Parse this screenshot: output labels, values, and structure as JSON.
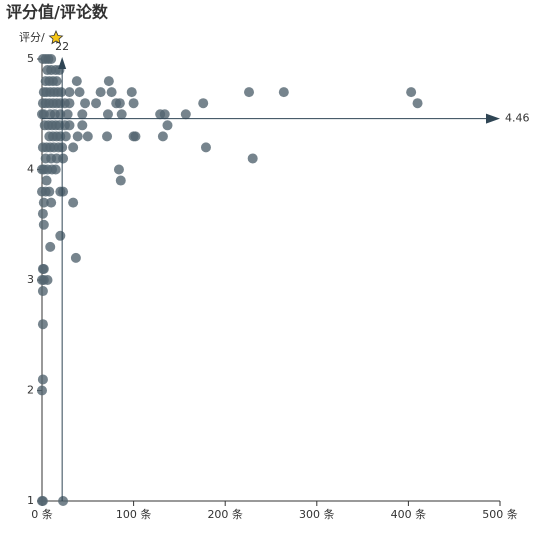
{
  "chart_data": {
    "type": "scatter",
    "title": "评分值/评论数",
    "y_axis_label": "评分/",
    "x": [
      0,
      1,
      23,
      0,
      1,
      1,
      1,
      0,
      2,
      6,
      1,
      2,
      9,
      2,
      1,
      2,
      10,
      0,
      4,
      8,
      20,
      23,
      5,
      0,
      2,
      6,
      11,
      15,
      4,
      10,
      16,
      23,
      1,
      5,
      9,
      13,
      18,
      22,
      34,
      8,
      12,
      16,
      20,
      26,
      39,
      50,
      71,
      100,
      102,
      132,
      3,
      7,
      11,
      15,
      19,
      25,
      30,
      44,
      137,
      0,
      2,
      9,
      14,
      20,
      28,
      44,
      72,
      87,
      129,
      134,
      157,
      1,
      4,
      8,
      12,
      16,
      20,
      25,
      30,
      47,
      59,
      81,
      85,
      100,
      176,
      410,
      2,
      5,
      9,
      13,
      17,
      21,
      30,
      41,
      64,
      76,
      98,
      226,
      264,
      403,
      4,
      8,
      12,
      16,
      38,
      73,
      6,
      10,
      15,
      19,
      1,
      4,
      7,
      10,
      34,
      37,
      20,
      84,
      86,
      179,
      230
    ],
    "values": [
      1,
      1,
      1,
      2.0,
      2.1,
      2.6,
      2.9,
      3.0,
      3.0,
      3.0,
      3.1,
      3.1,
      3.3,
      3.5,
      3.6,
      3.7,
      3.7,
      3.8,
      3.8,
      3.8,
      3.8,
      3.8,
      3.9,
      4.0,
      4.0,
      4.0,
      4.0,
      4.0,
      4.1,
      4.1,
      4.1,
      4.1,
      4.2,
      4.2,
      4.2,
      4.2,
      4.2,
      4.2,
      4.2,
      4.3,
      4.3,
      4.3,
      4.3,
      4.3,
      4.3,
      4.3,
      4.3,
      4.3,
      4.3,
      4.3,
      4.4,
      4.4,
      4.4,
      4.4,
      4.4,
      4.4,
      4.4,
      4.4,
      4.4,
      4.5,
      4.5,
      4.5,
      4.5,
      4.5,
      4.5,
      4.5,
      4.5,
      4.5,
      4.5,
      4.5,
      4.5,
      4.6,
      4.6,
      4.6,
      4.6,
      4.6,
      4.6,
      4.6,
      4.6,
      4.6,
      4.6,
      4.6,
      4.6,
      4.6,
      4.6,
      4.6,
      4.7,
      4.7,
      4.7,
      4.7,
      4.7,
      4.7,
      4.7,
      4.7,
      4.7,
      4.7,
      4.7,
      4.7,
      4.7,
      4.7,
      4.8,
      4.8,
      4.8,
      4.8,
      4.8,
      4.8,
      4.9,
      4.9,
      4.9,
      4.9,
      5,
      5,
      5,
      5,
      3.7,
      3.2,
      3.4,
      4.0,
      3.9,
      4.2,
      4.1
    ],
    "color": "#546570",
    "xlim": [
      0,
      500
    ],
    "xticks": [
      {
        "value": 0,
        "label": "0 条"
      },
      {
        "value": 100,
        "label": "100 条"
      },
      {
        "value": 200,
        "label": "200 条"
      },
      {
        "value": 300,
        "label": "300 条"
      },
      {
        "value": 400,
        "label": "400 条"
      },
      {
        "value": 500,
        "label": "500 条"
      }
    ],
    "ylim": [
      1,
      5
    ],
    "yticks": [
      1,
      2,
      3,
      4,
      5
    ],
    "mark_lines": {
      "x": 22,
      "y": 4.46
    }
  }
}
